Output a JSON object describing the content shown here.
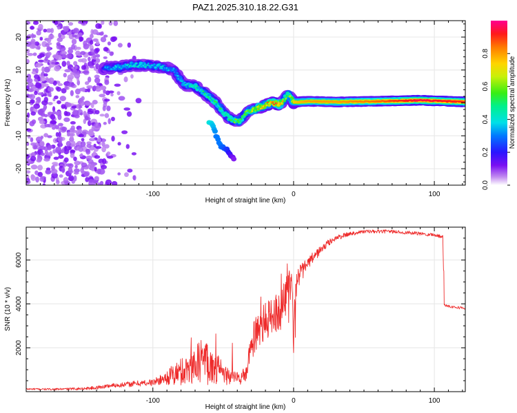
{
  "title": "PAZ1.2025.310.18.22.G31",
  "colors": {
    "snr_line": "#ee2a2a",
    "axis": "#000000",
    "grid": "#e6e6e6"
  },
  "chart_data": [
    {
      "type": "heatmap",
      "name": "spectrogram",
      "xlabel": "Height of straight line (km)",
      "ylabel": "Frequency (Hz)",
      "xlim": [
        -190,
        122
      ],
      "ylim": [
        -25,
        25
      ],
      "xticks": [
        -100,
        0,
        100
      ],
      "yticks": [
        -20,
        -10,
        0,
        10,
        20
      ],
      "grid": true,
      "noise_region_km": [
        -190,
        -110
      ],
      "ridge": {
        "x": [
          -135,
          -125,
          -115,
          -105,
          -95,
          -85,
          -78,
          -70,
          -62,
          -55,
          -50,
          -46,
          -42,
          -38,
          -34,
          -28,
          -22,
          -16,
          -10,
          -6,
          -4,
          -2,
          0,
          10,
          30,
          60,
          90,
          122
        ],
        "y": [
          10.5,
          10.8,
          11.5,
          11.5,
          11,
          10,
          5.5,
          5,
          2.5,
          0,
          -3,
          -4.5,
          -5.5,
          -5.5,
          -3,
          -2,
          -1,
          0,
          -0.5,
          1.5,
          2.5,
          1.5,
          0.2,
          0.5,
          0.3,
          0.5,
          0.8,
          0.3
        ],
        "amplitude": [
          0.3,
          0.38,
          0.4,
          0.4,
          0.38,
          0.32,
          0.4,
          0.45,
          0.45,
          0.5,
          0.5,
          0.5,
          0.55,
          0.55,
          0.6,
          0.7,
          0.75,
          0.8,
          0.85,
          0.6,
          0.55,
          0.6,
          0.75,
          0.8,
          0.8,
          0.85,
          0.95,
          0.9
        ]
      },
      "branch": {
        "x": [
          -60,
          -57,
          -55,
          -52,
          -48,
          -46,
          -44,
          -42
        ],
        "y": [
          -6,
          -7,
          -10,
          -13,
          -14,
          -15,
          -16.5,
          -17
        ],
        "amplitude": [
          0.4,
          0.35,
          0.3,
          0.3,
          0.25,
          0.2,
          0.15,
          0.1
        ]
      },
      "colorbar": {
        "label": "Normalized spectral amplitude",
        "range": [
          0,
          1
        ],
        "ticks": [
          0.0,
          0.2,
          0.4,
          0.6,
          0.8
        ],
        "tick_labels": [
          "0.0",
          "0.2",
          "0.4",
          "0.6",
          "0.8"
        ]
      }
    },
    {
      "type": "line",
      "name": "snr",
      "xlabel": "Height of straight line (km)",
      "ylabel": "SNR (10 * v/v)",
      "xlim": [
        -190,
        122
      ],
      "ylim": [
        0,
        7500
      ],
      "xticks": [
        -100,
        0,
        100
      ],
      "yticks": [
        2000,
        4000,
        6000
      ],
      "grid": true,
      "x": [
        -190,
        -170,
        -150,
        -140,
        -130,
        -120,
        -110,
        -100,
        -92,
        -84,
        -76,
        -70,
        -64,
        -58,
        -54,
        -50,
        -46,
        -42,
        -38,
        -34,
        -30,
        -26,
        -22,
        -18,
        -14,
        -10,
        -6,
        -3,
        -1,
        0,
        1,
        3,
        6,
        10,
        15,
        20,
        25,
        30,
        40,
        50,
        60,
        70,
        80,
        90,
        100,
        106,
        107,
        108,
        110,
        115,
        122
      ],
      "y": [
        120,
        110,
        140,
        180,
        280,
        320,
        380,
        420,
        600,
        800,
        1000,
        1200,
        1500,
        1200,
        1000,
        800,
        700,
        650,
        600,
        800,
        2000,
        2800,
        3000,
        3300,
        3600,
        3600,
        4200,
        4800,
        5200,
        2000,
        4600,
        5200,
        5500,
        5800,
        6200,
        6500,
        6800,
        7000,
        7200,
        7300,
        7300,
        7300,
        7250,
        7200,
        7150,
        7050,
        4000,
        3950,
        3900,
        3850,
        3800
      ],
      "noise_amplitude": [
        40,
        40,
        60,
        80,
        100,
        120,
        140,
        160,
        240,
        600,
        700,
        800,
        1200,
        900,
        700,
        500,
        400,
        350,
        300,
        400,
        700,
        900,
        900,
        900,
        900,
        900,
        900,
        900,
        600,
        600,
        600,
        500,
        400,
        300,
        250,
        200,
        150,
        120,
        100,
        80,
        80,
        80,
        80,
        80,
        80,
        80,
        60,
        60,
        60,
        60,
        60
      ]
    }
  ]
}
